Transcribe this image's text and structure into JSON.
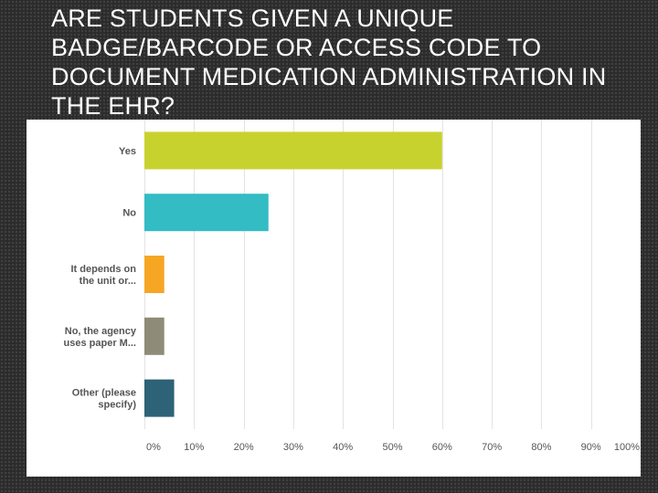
{
  "slide": {
    "title": "ARE STUDENTS GIVEN A UNIQUE BADGE/BARCODE OR ACCESS CODE TO DOCUMENT MEDICATION ADMINISTRATION IN THE EHR?"
  },
  "chart_data": {
    "type": "bar",
    "orientation": "horizontal",
    "categories": [
      [
        "Yes"
      ],
      [
        "No"
      ],
      [
        "It depends on",
        "the unit or..."
      ],
      [
        "No, the agency",
        "uses paper M..."
      ],
      [
        "Other (please",
        "specify)"
      ]
    ],
    "values": [
      60,
      25,
      4,
      4,
      6
    ],
    "colors": [
      "#c8d22e",
      "#33bcc3",
      "#f5a623",
      "#8e8b78",
      "#2e6276"
    ],
    "xlim": [
      0,
      100
    ],
    "xticks": [
      "0%",
      "10%",
      "20%",
      "30%",
      "40%",
      "50%",
      "60%",
      "70%",
      "80%",
      "90%",
      "100%"
    ],
    "grid": true
  }
}
